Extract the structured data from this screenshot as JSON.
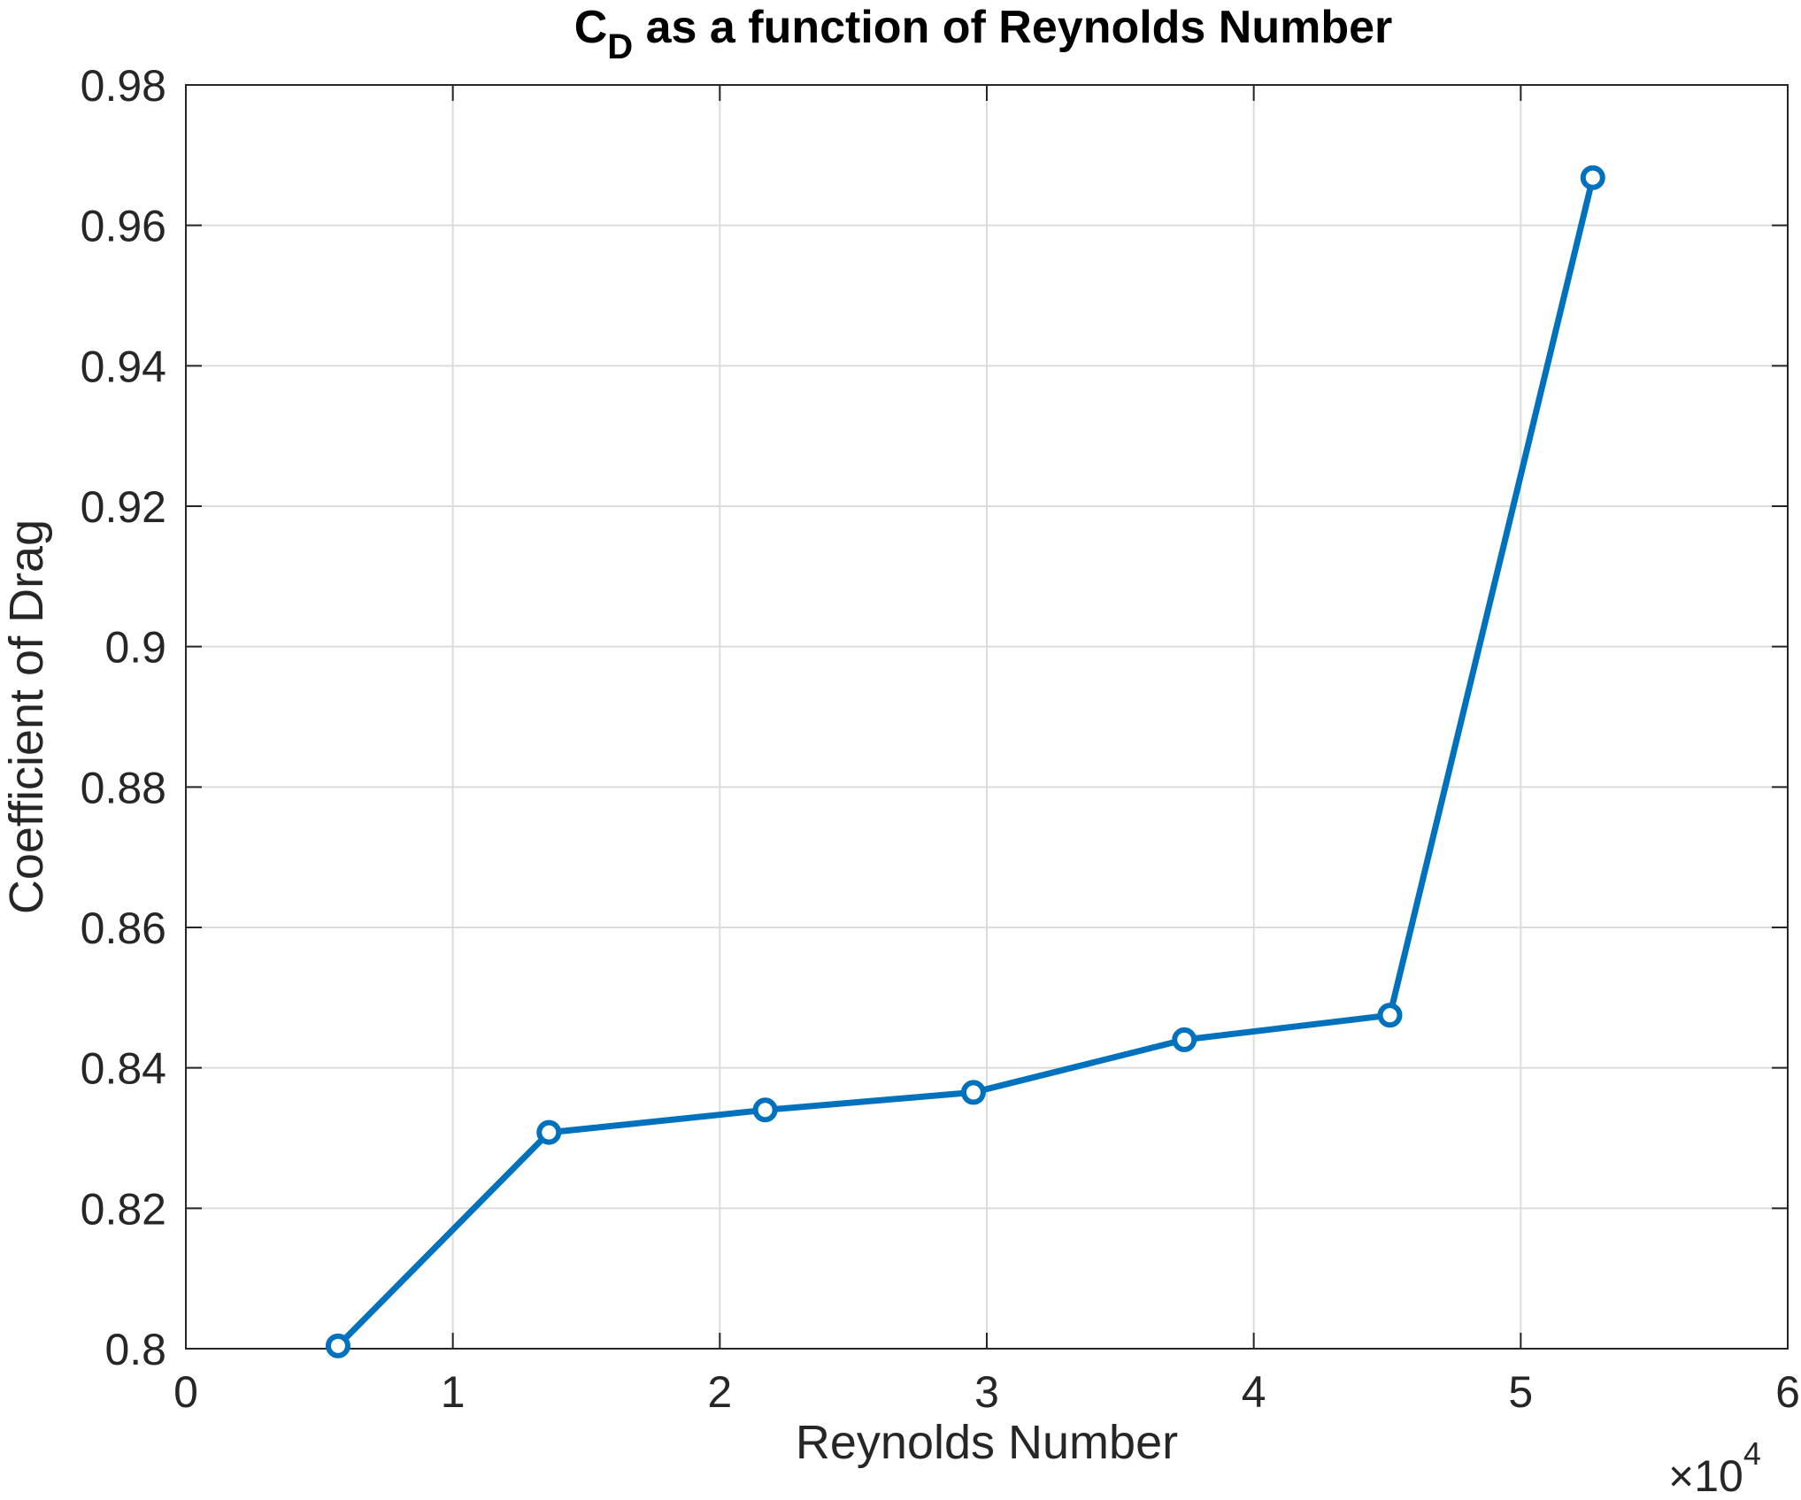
{
  "chart_data": {
    "type": "line",
    "title": {
      "main": "C",
      "subscript": "D",
      "rest": " as a function of Reynolds Number"
    },
    "xlabel": "Reynolds Number",
    "ylabel": "Coefficient of Drag",
    "x_multiplier": {
      "base": "×10",
      "exponent": "4"
    },
    "xlim": [
      0,
      6
    ],
    "ylim": [
      0.8,
      0.98
    ],
    "x_ticks": [
      0,
      1,
      2,
      3,
      4,
      5,
      6
    ],
    "x_tick_labels": [
      "0",
      "1",
      "2",
      "3",
      "4",
      "5",
      "6"
    ],
    "y_ticks": [
      0.8,
      0.82,
      0.84,
      0.86,
      0.88,
      0.9,
      0.92,
      0.94,
      0.96,
      0.98
    ],
    "y_tick_labels": [
      "0.8",
      "0.82",
      "0.84",
      "0.86",
      "0.88",
      "0.9",
      "0.92",
      "0.94",
      "0.96",
      "0.98"
    ],
    "grid": true,
    "legend": "none",
    "series": [
      {
        "color": "#0072BD",
        "marker": "circle",
        "x": [
          0.57,
          1.36,
          2.17,
          2.95,
          3.74,
          4.51,
          5.27
        ],
        "y": [
          0.8004,
          0.8308,
          0.834,
          0.8365,
          0.844,
          0.8475,
          0.9668
        ]
      }
    ]
  }
}
